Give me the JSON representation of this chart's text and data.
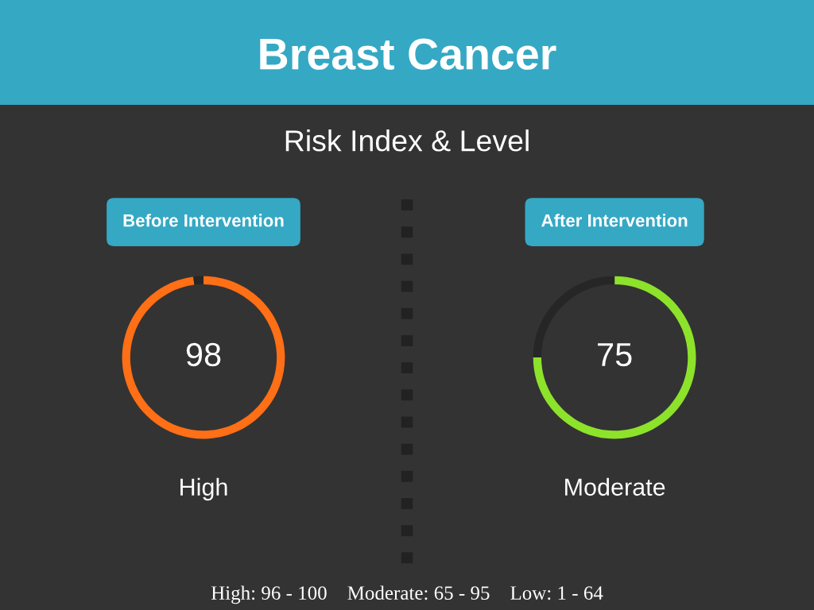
{
  "chart_data": [
    {
      "type": "other",
      "title": "Breast Cancer",
      "subtitle": "Risk Index & Level",
      "annotations": [
        "High: 96 - 100    Moderate: 65 - 95    Low: 1 - 64"
      ]
    },
    {
      "type": "donut",
      "title": "Before Intervention",
      "categories": [
        null,
        null
      ],
      "values": [
        98,
        2
      ],
      "colors": [
        "#ff6f16",
        "#262626"
      ],
      "value_labels": [
        "98",
        null
      ],
      "annotations": [
        "High"
      ]
    },
    {
      "type": "donut",
      "title": "After Intervention",
      "categories": [
        null,
        null
      ],
      "values": [
        75,
        25
      ],
      "colors": [
        "#8de22a",
        "#262626"
      ],
      "value_labels": [
        "75",
        null
      ],
      "annotations": [
        "Moderate"
      ]
    }
  ]
}
